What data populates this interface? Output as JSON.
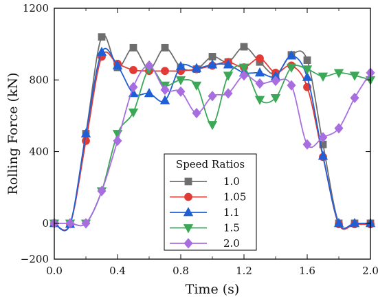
{
  "chart_data": {
    "type": "line",
    "xlabel": "Time (s)",
    "ylabel": "Rolling Force (kN)",
    "xlim": [
      0.0,
      2.0
    ],
    "ylim": [
      -200,
      1200
    ],
    "xticks": [
      0.0,
      0.4,
      0.8,
      1.2,
      1.6,
      2.0
    ],
    "xtick_labels": [
      "0.0",
      "0.4",
      "0.8",
      "1.2",
      "1.6",
      "2.0"
    ],
    "yticks": [
      -200,
      0,
      400,
      800,
      1200
    ],
    "ytick_labels": [
      "−200",
      "0",
      "400",
      "800",
      "1200"
    ],
    "grid": false,
    "legend": {
      "title": "Speed Ratios",
      "position": "lower-center"
    },
    "series": [
      {
        "name": "1.0",
        "color": "#6e6e6e",
        "marker": "square",
        "x": [
          0.0,
          0.1,
          0.2,
          0.3,
          0.4,
          0.5,
          0.6,
          0.7,
          0.8,
          0.9,
          1.0,
          1.1,
          1.2,
          1.3,
          1.4,
          1.5,
          1.6,
          1.7,
          1.8,
          1.9,
          2.0
        ],
        "y": [
          0,
          -5,
          500,
          1040,
          870,
          980,
          860,
          980,
          870,
          860,
          930,
          900,
          985,
          900,
          830,
          940,
          910,
          440,
          0,
          0,
          0
        ]
      },
      {
        "name": "1.05",
        "color": "#e23b36",
        "marker": "circle",
        "x": [
          0.0,
          0.1,
          0.2,
          0.3,
          0.4,
          0.5,
          0.6,
          0.7,
          0.8,
          0.9,
          1.0,
          1.1,
          1.2,
          1.3,
          1.4,
          1.5,
          1.6,
          1.7,
          1.8,
          1.9,
          2.0
        ],
        "y": [
          0,
          -5,
          460,
          930,
          890,
          855,
          850,
          850,
          850,
          860,
          880,
          900,
          870,
          920,
          840,
          880,
          760,
          370,
          -5,
          -5,
          -5
        ]
      },
      {
        "name": "1.1",
        "color": "#1f5fd6",
        "marker": "triangle-up",
        "x": [
          0.0,
          0.1,
          0.2,
          0.3,
          0.4,
          0.5,
          0.6,
          0.7,
          0.8,
          0.9,
          1.0,
          1.1,
          1.2,
          1.3,
          1.4,
          1.5,
          1.6,
          1.7,
          1.8,
          1.9,
          2.0
        ],
        "y": [
          0,
          -5,
          500,
          955,
          880,
          725,
          725,
          685,
          875,
          865,
          885,
          885,
          840,
          840,
          820,
          935,
          815,
          375,
          0,
          0,
          0
        ]
      },
      {
        "name": "1.5",
        "color": "#3aa856",
        "marker": "triangle-down",
        "x": [
          0.0,
          0.1,
          0.2,
          0.3,
          0.4,
          0.5,
          0.6,
          0.7,
          0.8,
          0.9,
          1.0,
          1.1,
          1.2,
          1.3,
          1.4,
          1.5,
          1.6,
          1.7,
          1.8,
          1.9,
          2.0
        ],
        "y": [
          0,
          0,
          0,
          180,
          500,
          620,
          860,
          770,
          800,
          770,
          550,
          825,
          870,
          690,
          700,
          870,
          860,
          820,
          840,
          825,
          800
        ]
      },
      {
        "name": "2.0",
        "color": "#a86ee0",
        "marker": "diamond",
        "x": [
          0.0,
          0.1,
          0.2,
          0.3,
          0.4,
          0.5,
          0.6,
          0.7,
          0.8,
          0.9,
          1.0,
          1.1,
          1.2,
          1.3,
          1.4,
          1.5,
          1.6,
          1.7,
          1.8,
          1.9,
          2.0
        ],
        "y": [
          0,
          0,
          0,
          180,
          460,
          760,
          880,
          745,
          735,
          615,
          710,
          725,
          825,
          780,
          795,
          770,
          440,
          480,
          530,
          700,
          840
        ]
      }
    ]
  }
}
